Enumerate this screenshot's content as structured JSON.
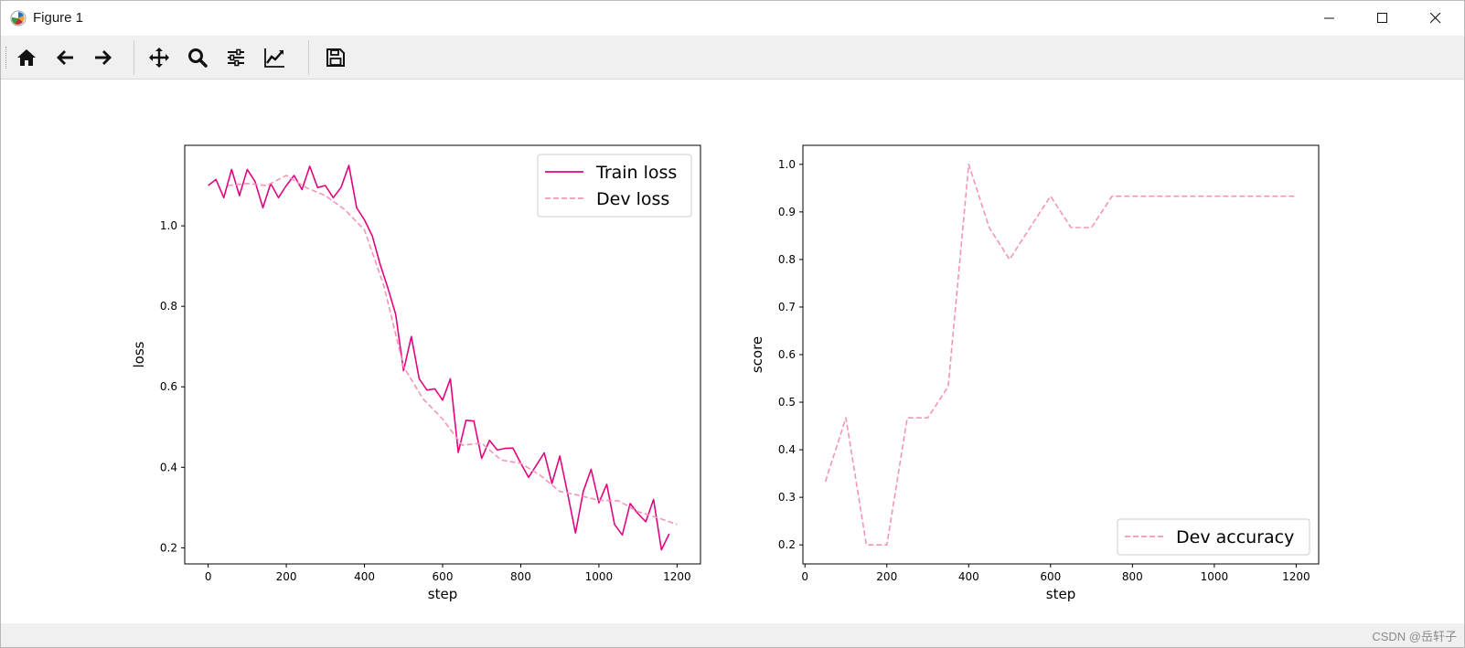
{
  "window": {
    "title": "Figure 1"
  },
  "toolbar": {
    "buttons": [
      {
        "name": "home-icon"
      },
      {
        "name": "back-arrow-icon"
      },
      {
        "name": "forward-arrow-icon"
      },
      {
        "name": "pan-icon"
      },
      {
        "name": "zoom-icon"
      },
      {
        "name": "configure-subplots-icon"
      },
      {
        "name": "edit-axis-icon"
      },
      {
        "name": "save-icon"
      }
    ]
  },
  "colors": {
    "train": "#e0057f",
    "dev": "#f395ba"
  },
  "chart_data": [
    {
      "type": "line",
      "xlabel": "step",
      "ylabel": "loss",
      "xlim": [
        -60,
        1260
      ],
      "ylim": [
        0.16,
        1.2
      ],
      "xticks": [
        0,
        200,
        400,
        600,
        800,
        1000,
        1200
      ],
      "yticks": [
        0.2,
        0.4,
        0.6,
        0.8,
        1.0
      ],
      "xticklabels": [
        "0",
        "200",
        "400",
        "600",
        "800",
        "1000",
        "1200"
      ],
      "yticklabels": [
        "0.2",
        "0.4",
        "0.6",
        "0.8",
        "1.0"
      ],
      "legend": "upper right",
      "grid": false,
      "series": [
        {
          "name": "Train loss",
          "style": "solid",
          "x": [
            0,
            20,
            40,
            60,
            80,
            100,
            120,
            140,
            160,
            180,
            200,
            220,
            240,
            260,
            280,
            300,
            320,
            340,
            360,
            380,
            400,
            420,
            440,
            460,
            480,
            500,
            520,
            540,
            560,
            580,
            600,
            620,
            640,
            660,
            680,
            700,
            720,
            740,
            760,
            780,
            800,
            820,
            840,
            860,
            880,
            900,
            920,
            940,
            960,
            980,
            1000,
            1020,
            1040,
            1060,
            1080,
            1100,
            1120,
            1140,
            1160,
            1180
          ],
          "y": [
            1.1,
            1.115,
            1.07,
            1.14,
            1.075,
            1.14,
            1.11,
            1.045,
            1.105,
            1.07,
            1.1,
            1.125,
            1.09,
            1.148,
            1.095,
            1.1,
            1.07,
            1.095,
            1.15,
            1.045,
            1.015,
            0.975,
            0.905,
            0.845,
            0.78,
            0.64,
            0.725,
            0.62,
            0.592,
            0.595,
            0.567,
            0.62,
            0.437,
            0.517,
            0.515,
            0.422,
            0.467,
            0.443,
            0.447,
            0.448,
            0.41,
            0.375,
            0.405,
            0.436,
            0.36,
            0.428,
            0.335,
            0.237,
            0.34,
            0.395,
            0.312,
            0.358,
            0.258,
            0.232,
            0.31,
            0.285,
            0.265,
            0.32,
            0.195,
            0.235
          ]
        },
        {
          "name": "Dev loss",
          "style": "dashed",
          "x": [
            50,
            100,
            150,
            200,
            250,
            300,
            350,
            400,
            450,
            500,
            550,
            600,
            650,
            700,
            750,
            800,
            850,
            900,
            950,
            1000,
            1050,
            1100,
            1150,
            1200
          ],
          "y": [
            1.1,
            1.105,
            1.1,
            1.125,
            1.095,
            1.075,
            1.04,
            0.99,
            0.85,
            0.65,
            0.57,
            0.52,
            0.455,
            0.46,
            0.418,
            0.41,
            0.38,
            0.34,
            0.33,
            0.318,
            0.317,
            0.29,
            0.275,
            0.258
          ]
        }
      ]
    },
    {
      "type": "line",
      "xlabel": "step",
      "ylabel": "score",
      "xlim": [
        -5,
        1255
      ],
      "ylim": [
        0.16,
        1.04
      ],
      "xticks": [
        0,
        200,
        400,
        600,
        800,
        1000,
        1200
      ],
      "yticks": [
        0.2,
        0.3,
        0.4,
        0.5,
        0.6,
        0.7,
        0.8,
        0.9,
        1.0
      ],
      "xticklabels": [
        "0",
        "200",
        "400",
        "600",
        "800",
        "1000",
        "1200"
      ],
      "yticklabels": [
        "0.2",
        "0.3",
        "0.4",
        "0.5",
        "0.6",
        "0.7",
        "0.8",
        "0.9",
        "1.0"
      ],
      "legend": "lower right",
      "grid": false,
      "series": [
        {
          "name": "Dev accuracy",
          "style": "dashed",
          "x": [
            50,
            100,
            150,
            200,
            250,
            300,
            350,
            400,
            450,
            500,
            550,
            600,
            650,
            700,
            750,
            800,
            850,
            900,
            950,
            1000,
            1050,
            1100,
            1150,
            1200
          ],
          "y": [
            0.333,
            0.467,
            0.2,
            0.2,
            0.467,
            0.467,
            0.533,
            1.0,
            0.867,
            0.8,
            0.867,
            0.933,
            0.867,
            0.867,
            0.933,
            0.933,
            0.933,
            0.933,
            0.933,
            0.933,
            0.933,
            0.933,
            0.933,
            0.933
          ]
        }
      ]
    }
  ],
  "watermark": "CSDN @岳轩子"
}
